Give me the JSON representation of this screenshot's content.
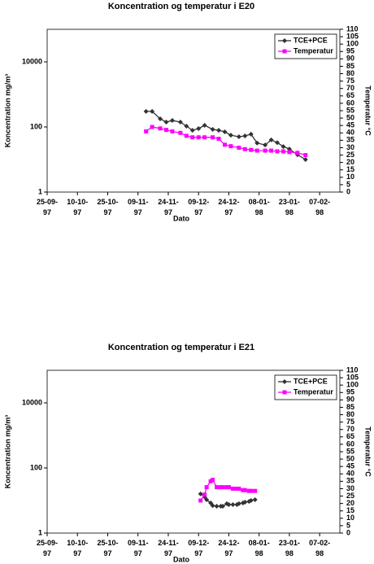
{
  "chart_data": [
    {
      "type": "line",
      "title": "Koncentration og temperatur i E20",
      "xlabel": "Dato",
      "ylabel": "Koncentration mg/m³",
      "y2label": "Temperatur °C",
      "x": [
        "1997-11-13",
        "1997-11-16",
        "1997-11-20",
        "1997-11-23",
        "1997-11-26",
        "1997-11-30",
        "1997-12-03",
        "1997-12-06",
        "1997-12-09",
        "1997-12-12",
        "1997-12-16",
        "1997-12-19",
        "1997-12-22",
        "1997-12-25",
        "1997-12-29",
        "1998-01-01",
        "1998-01-04",
        "1998-01-07",
        "1998-01-11",
        "1998-01-14",
        "1998-01-17",
        "1998-01-20",
        "1998-01-23",
        "1998-01-27",
        "1998-01-31"
      ],
      "xlim": [
        "1997-09-25",
        "1998-02-17"
      ],
      "xticks": [
        {
          "value": "1997-09-25",
          "label": "25-09-97"
        },
        {
          "value": "1997-10-10",
          "label": "10-10-97"
        },
        {
          "value": "1997-10-25",
          "label": "25-10-97"
        },
        {
          "value": "1997-11-09",
          "label": "09-11-97"
        },
        {
          "value": "1997-11-24",
          "label": "24-11-97"
        },
        {
          "value": "1997-12-09",
          "label": "09-12-97"
        },
        {
          "value": "1997-12-24",
          "label": "24-12-97"
        },
        {
          "value": "1998-01-08",
          "label": "08-01-98"
        },
        {
          "value": "1998-01-23",
          "label": "23-01-98"
        },
        {
          "value": "1998-02-07",
          "label": "07-02-98"
        }
      ],
      "ylim": [
        1,
        100000
      ],
      "yticks": [
        1,
        100,
        10000
      ],
      "log_y": true,
      "y2lim": [
        0,
        110
      ],
      "y2ticks": [
        0,
        5,
        10,
        15,
        20,
        25,
        30,
        35,
        40,
        45,
        50,
        55,
        60,
        65,
        70,
        75,
        80,
        85,
        90,
        95,
        100,
        105,
        110
      ],
      "legend": "upper right",
      "series": [
        {
          "name": "TCE+PCE",
          "color": "#333333",
          "marker": "diamond",
          "values": [
            300,
            300,
            178,
            141,
            158,
            141,
            106,
            79,
            89,
            112,
            84,
            79,
            71,
            56,
            50,
            53,
            60,
            32,
            28,
            40,
            33,
            25,
            21,
            14,
            10
          ]
        },
        {
          "name": "Temperatur",
          "color": "#ff00ff",
          "marker": "square",
          "axis": "y2",
          "values": [
            41,
            44,
            43,
            42,
            41,
            40,
            38,
            37,
            37,
            37,
            37,
            36,
            32,
            31,
            30,
            29,
            28.5,
            28,
            28,
            28,
            27.5,
            27.5,
            27,
            26.5,
            25
          ]
        }
      ]
    },
    {
      "type": "line",
      "title": "Koncentration og temperatur i E21",
      "xlabel": "Dato",
      "ylabel": "Koncentration mg/m³",
      "y2label": "Temperatur °C",
      "x": [
        "1997-12-10",
        "1997-12-12",
        "1997-12-13",
        "1997-12-15",
        "1997-12-16",
        "1997-12-18",
        "1997-12-20",
        "1997-12-21",
        "1997-12-23",
        "1997-12-24",
        "1997-12-26",
        "1997-12-28",
        "1997-12-29",
        "1997-12-31",
        "1998-01-01",
        "1998-01-03",
        "1998-01-04",
        "1998-01-06"
      ],
      "xlim": [
        "1997-09-25",
        "1998-02-17"
      ],
      "xticks": [
        {
          "value": "1997-09-25",
          "label": "25-09-97"
        },
        {
          "value": "1997-10-10",
          "label": "10-10-97"
        },
        {
          "value": "1997-10-25",
          "label": "25-10-97"
        },
        {
          "value": "1997-11-09",
          "label": "09-11-97"
        },
        {
          "value": "1997-11-24",
          "label": "24-11-97"
        },
        {
          "value": "1997-12-09",
          "label": "09-12-97"
        },
        {
          "value": "1997-12-24",
          "label": "24-12-97"
        },
        {
          "value": "1998-01-08",
          "label": "08-01-98"
        },
        {
          "value": "1998-01-23",
          "label": "23-01-98"
        },
        {
          "value": "1998-02-07",
          "label": "07-02-98"
        }
      ],
      "ylim": [
        1,
        100000
      ],
      "yticks": [
        1,
        100,
        10000
      ],
      "log_y": true,
      "y2lim": [
        0,
        110
      ],
      "y2ticks": [
        0,
        5,
        10,
        15,
        20,
        25,
        30,
        35,
        40,
        45,
        50,
        55,
        60,
        65,
        70,
        75,
        80,
        85,
        90,
        95,
        100,
        105,
        110
      ],
      "legend": "upper right",
      "series": [
        {
          "name": "TCE+PCE",
          "color": "#333333",
          "marker": "diamond",
          "values": [
            16,
            13,
            10.6,
            8.4,
            7,
            6.7,
            6.7,
            6.7,
            8,
            7.5,
            7.5,
            7.5,
            8,
            8.4,
            8.9,
            9.4,
            10,
            10.6
          ]
        },
        {
          "name": "Temperatur",
          "color": "#ff00ff",
          "marker": "square",
          "axis": "y2",
          "values": [
            22,
            26,
            31,
            35,
            36,
            31,
            31,
            31,
            31,
            31,
            30,
            30,
            30,
            29,
            29,
            28.5,
            28.5,
            28.5
          ]
        }
      ]
    }
  ]
}
